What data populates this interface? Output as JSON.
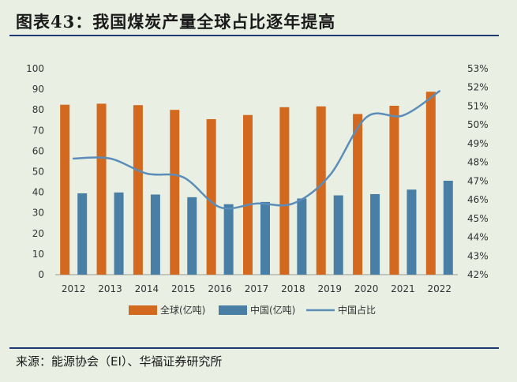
{
  "header": {
    "title": "图表43：我国煤炭产量全球占比逐年提高"
  },
  "footer": {
    "source": "来源：能源协会（EI）、华福证券研究所"
  },
  "chart_data": {
    "type": "bar",
    "categories": [
      "2012",
      "2013",
      "2014",
      "2015",
      "2016",
      "2017",
      "2018",
      "2019",
      "2020",
      "2021",
      "2022"
    ],
    "series": [
      {
        "name": "全球(亿吨)",
        "type": "bar",
        "axis": "left",
        "color": "#d2691e",
        "values": [
          82.5,
          83.0,
          82.3,
          80.0,
          75.5,
          77.5,
          81.3,
          81.7,
          78.0,
          82.0,
          88.8
        ]
      },
      {
        "name": "中国(亿吨)",
        "type": "bar",
        "axis": "left",
        "color": "#4a7fa5",
        "values": [
          39.5,
          39.9,
          38.9,
          37.6,
          34.2,
          35.3,
          37.0,
          38.5,
          39.1,
          41.3,
          45.6
        ]
      },
      {
        "name": "中国占比",
        "type": "line",
        "axis": "right",
        "color": "#5b8db8",
        "values": [
          48.2,
          48.2,
          47.4,
          47.2,
          45.6,
          45.8,
          45.8,
          47.3,
          50.4,
          50.5,
          51.8
        ]
      }
    ],
    "y_left": {
      "min": 0,
      "max": 100,
      "step": 10,
      "ticks": [
        "0",
        "10",
        "20",
        "30",
        "40",
        "50",
        "60",
        "70",
        "80",
        "90",
        "100"
      ]
    },
    "y_right": {
      "min": 42,
      "max": 53,
      "step": 1,
      "ticks": [
        "42%",
        "43%",
        "44%",
        "45%",
        "46%",
        "47%",
        "48%",
        "49%",
        "50%",
        "51%",
        "52%",
        "53%"
      ]
    },
    "grid": false,
    "legend_position": "bottom"
  }
}
